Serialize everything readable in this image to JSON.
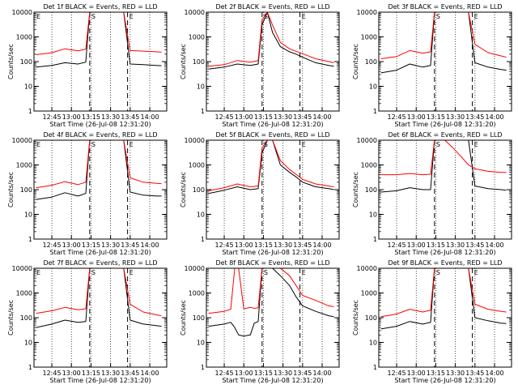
{
  "figure": {
    "xlabel": "Start Time (26-Jul-08 12:31:20)",
    "ylabel": "Counts/sec",
    "x_ticks": [
      "12:45",
      "13:00",
      "13:15",
      "13:30",
      "13:45",
      "14:00"
    ],
    "y_ticks": [
      "1",
      "10",
      "100",
      "1000",
      "10000"
    ],
    "colors": {
      "events": "#000000",
      "lld": "#ff0000",
      "axes": "#000000",
      "background": "#ffffff"
    }
  },
  "chart_data": [
    {
      "type": "line",
      "title": "Det 1f BLACK = Events, RED = LLD",
      "yscale": "log",
      "ylim": [
        1,
        10000
      ],
      "x": [
        "12:33",
        "12:45",
        "12:55",
        "13:05",
        "13:11",
        "13:14",
        "13:18",
        "13:22",
        "13:28",
        "13:35",
        "13:40",
        "13:45",
        "13:55",
        "14:05",
        "14:09"
      ],
      "markers": [
        {
          "label": "E",
          "at": "12:33"
        },
        {
          "label": "S",
          "at": "13:14"
        },
        {
          "label": "E",
          "at": "13:43"
        }
      ],
      "series": [
        {
          "values": [
            60,
            70,
            90,
            80,
            95,
            10000,
            10000,
            10000,
            10000,
            10000,
            10000,
            80,
            75,
            70,
            68
          ]
        },
        {
          "values": [
            190,
            230,
            330,
            270,
            320,
            10000,
            10000,
            10000,
            10000,
            10000,
            10000,
            280,
            265,
            250,
            240
          ]
        }
      ]
    },
    {
      "type": "line",
      "title": "Det 2f BLACK = Events, RED = LLD",
      "yscale": "log",
      "ylim": [
        1,
        10000
      ],
      "x": [
        "12:33",
        "12:45",
        "12:55",
        "13:05",
        "13:11",
        "13:14",
        "13:18",
        "13:22",
        "13:28",
        "13:35",
        "13:40",
        "13:45",
        "13:55",
        "14:05",
        "14:09"
      ],
      "markers": [
        {
          "label": "S",
          "at": "13:14"
        },
        {
          "label": "E",
          "at": "13:43"
        }
      ],
      "series": [
        {
          "values": [
            50,
            60,
            80,
            70,
            80,
            3000,
            10000,
            1500,
            400,
            250,
            200,
            150,
            90,
            70,
            65
          ]
        },
        {
          "values": [
            65,
            75,
            110,
            95,
            110,
            5000,
            10000,
            3000,
            600,
            330,
            260,
            210,
            130,
            100,
            90
          ]
        }
      ]
    },
    {
      "type": "line",
      "title": "Det 3f BLACK = Events, RED = LLD",
      "yscale": "log",
      "ylim": [
        1,
        10000
      ],
      "x": [
        "12:33",
        "12:45",
        "12:55",
        "13:05",
        "13:11",
        "13:14",
        "13:18",
        "13:22",
        "13:28",
        "13:35",
        "13:40",
        "13:45",
        "13:55",
        "14:05",
        "14:09"
      ],
      "markers": [
        {
          "label": "S",
          "at": "13:14"
        },
        {
          "label": "E",
          "at": "13:43"
        }
      ],
      "series": [
        {
          "values": [
            35,
            45,
            80,
            60,
            70,
            10000,
            10000,
            10000,
            10000,
            10000,
            10000,
            90,
            60,
            48,
            45
          ]
        },
        {
          "values": [
            130,
            160,
            280,
            220,
            250,
            10000,
            10000,
            10000,
            10000,
            10000,
            10000,
            500,
            230,
            170,
            150
          ]
        }
      ]
    },
    {
      "type": "line",
      "title": "Det 4f BLACK = Events, RED = LLD",
      "yscale": "log",
      "ylim": [
        1,
        10000
      ],
      "x": [
        "12:33",
        "12:45",
        "12:55",
        "13:05",
        "13:11",
        "13:14",
        "13:18",
        "13:22",
        "13:28",
        "13:35",
        "13:40",
        "13:45",
        "13:55",
        "14:05",
        "14:09"
      ],
      "markers": [
        {
          "label": "E",
          "at": "12:33"
        },
        {
          "label": "S",
          "at": "13:14"
        },
        {
          "label": "E",
          "at": "13:43"
        }
      ],
      "series": [
        {
          "values": [
            40,
            50,
            75,
            55,
            70,
            10000,
            10000,
            10000,
            10000,
            10000,
            10000,
            80,
            60,
            55,
            55
          ]
        },
        {
          "values": [
            120,
            150,
            210,
            160,
            200,
            10000,
            10000,
            10000,
            10000,
            10000,
            10000,
            300,
            200,
            180,
            175
          ]
        }
      ]
    },
    {
      "type": "line",
      "title": "Det 5f BLACK = Events, RED = LLD",
      "yscale": "log",
      "ylim": [
        1,
        10000
      ],
      "x": [
        "12:33",
        "12:45",
        "12:55",
        "13:05",
        "13:11",
        "13:14",
        "13:18",
        "13:22",
        "13:28",
        "13:35",
        "13:40",
        "13:45",
        "13:55",
        "14:05",
        "14:09"
      ],
      "markers": [
        {
          "label": "S",
          "at": "13:14"
        },
        {
          "label": "E",
          "at": "13:43"
        }
      ],
      "series": [
        {
          "values": [
            70,
            95,
            130,
            100,
            110,
            3000,
            10000,
            10000,
            1000,
            500,
            330,
            200,
            130,
            110,
            100
          ]
        },
        {
          "values": [
            90,
            120,
            170,
            130,
            140,
            5000,
            10000,
            10000,
            1500,
            650,
            420,
            260,
            170,
            140,
            130
          ]
        }
      ]
    },
    {
      "type": "line",
      "title": "Det 6f BLACK = Events, RED = LLD",
      "yscale": "log",
      "ylim": [
        1,
        10000
      ],
      "x": [
        "12:33",
        "12:45",
        "12:55",
        "13:05",
        "13:11",
        "13:14",
        "13:18",
        "13:22",
        "13:28",
        "13:35",
        "13:40",
        "13:45",
        "13:55",
        "14:05",
        "14:09"
      ],
      "markers": [
        {
          "label": "S",
          "at": "13:14"
        },
        {
          "label": "E",
          "at": "13:43"
        }
      ],
      "series": [
        {
          "values": [
            80,
            90,
            120,
            100,
            100,
            10000,
            10000,
            10000,
            10000,
            10000,
            10000,
            140,
            110,
            100,
            95
          ]
        },
        {
          "values": [
            400,
            400,
            450,
            400,
            420,
            10000,
            10000,
            10000,
            5000,
            2000,
            1000,
            700,
            550,
            500,
            500
          ]
        }
      ]
    },
    {
      "type": "line",
      "title": "Det 7f BLACK = Events, RED = LLD",
      "yscale": "log",
      "ylim": [
        1,
        10000
      ],
      "x": [
        "12:33",
        "12:45",
        "12:55",
        "13:05",
        "13:11",
        "13:14",
        "13:18",
        "13:22",
        "13:28",
        "13:35",
        "13:40",
        "13:45",
        "13:55",
        "14:05",
        "14:09"
      ],
      "markers": [
        {
          "label": "E",
          "at": "12:33"
        },
        {
          "label": "S",
          "at": "13:14"
        },
        {
          "label": "E",
          "at": "13:43"
        }
      ],
      "series": [
        {
          "values": [
            40,
            55,
            80,
            65,
            70,
            10000,
            10000,
            10000,
            10000,
            10000,
            10000,
            80,
            55,
            48,
            45
          ]
        },
        {
          "values": [
            150,
            190,
            260,
            210,
            230,
            10000,
            10000,
            10000,
            10000,
            10000,
            10000,
            350,
            170,
            130,
            120
          ]
        }
      ]
    },
    {
      "type": "line",
      "title": "Det 8f BLACK = Events, RED = LLD",
      "yscale": "log",
      "ylim": [
        1,
        10000
      ],
      "x": [
        "12:33",
        "12:45",
        "12:50",
        "12:53",
        "12:56",
        "13:00",
        "13:05",
        "13:08",
        "13:11",
        "13:14",
        "13:18",
        "13:22",
        "13:28",
        "13:35",
        "13:40",
        "13:45",
        "13:55",
        "14:05",
        "14:09"
      ],
      "markers": [
        {
          "label": "S",
          "at": "13:14"
        },
        {
          "label": "E",
          "at": "13:43"
        }
      ],
      "series": [
        {
          "values": [
            45,
            55,
            65,
            40,
            20,
            18,
            20,
            60,
            70,
            10000,
            10000,
            10000,
            5000,
            2000,
            700,
            300,
            180,
            120,
            110
          ]
        },
        {
          "values": [
            150,
            180,
            220,
            10000,
            10000,
            230,
            260,
            240,
            250,
            10000,
            10000,
            10000,
            10000,
            5000,
            2000,
            800,
            500,
            300,
            280
          ]
        }
      ]
    },
    {
      "type": "line",
      "title": "Det 9f BLACK = Events, RED = LLD",
      "yscale": "log",
      "ylim": [
        1,
        10000
      ],
      "x": [
        "12:33",
        "12:45",
        "12:55",
        "13:05",
        "13:11",
        "13:14",
        "13:18",
        "13:22",
        "13:28",
        "13:35",
        "13:40",
        "13:45",
        "13:55",
        "14:05",
        "14:09"
      ],
      "markers": [
        {
          "label": "S",
          "at": "13:14"
        },
        {
          "label": "E",
          "at": "13:43"
        }
      ],
      "series": [
        {
          "values": [
            35,
            45,
            70,
            55,
            65,
            10000,
            10000,
            10000,
            10000,
            10000,
            10000,
            100,
            75,
            60,
            58
          ]
        },
        {
          "values": [
            110,
            140,
            220,
            170,
            200,
            10000,
            10000,
            10000,
            10000,
            10000,
            10000,
            350,
            220,
            180,
            170
          ]
        }
      ]
    }
  ]
}
